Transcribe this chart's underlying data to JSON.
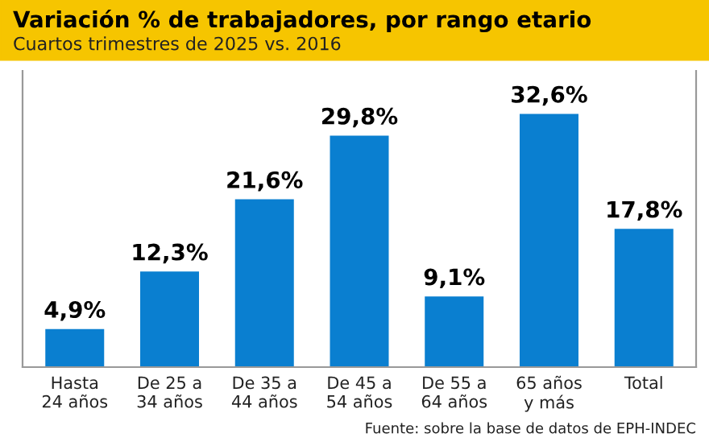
{
  "chart_data": {
    "type": "bar",
    "title": "Variación % de trabajadores, por rango etario",
    "subtitle": "Cuartos trimestres de 2025 vs. 2016",
    "categories": [
      "Hasta\n24 años",
      "De 25 a\n34 años",
      "De 35 a\n44 años",
      "De 45 a\n54 años",
      "De 55 a\n64 años",
      "65 años\ny más",
      "Total"
    ],
    "values": [
      4.9,
      12.3,
      21.6,
      29.8,
      9.1,
      32.6,
      17.8
    ],
    "value_labels": [
      "4,9%",
      "12,3%",
      "21,6%",
      "29,8%",
      "9,1%",
      "32,6%",
      "17,8%"
    ],
    "color": "#0a7fd0",
    "annotations": [
      "Fuente: sobre la base de datos de EPH-INDEC"
    ]
  }
}
